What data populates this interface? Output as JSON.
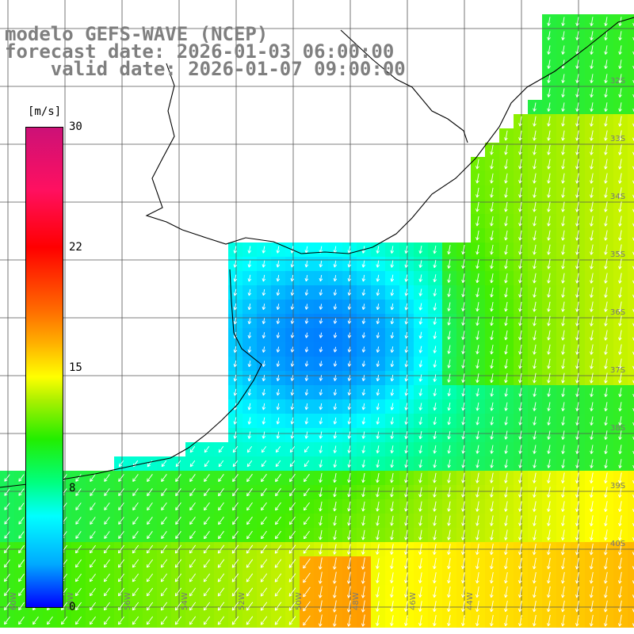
{
  "title": {
    "model": "modelo GEFS-WAVE (NCEP)",
    "forecast": "forecast date: 2026-01-03 06:00:00",
    "valid": "    valid date: 2026-01-07 09:00:00"
  },
  "colorbar": {
    "unit": "[m/s]",
    "min": 0,
    "max": 30,
    "ticks": [
      {
        "value": 30,
        "label": "30"
      },
      {
        "value": 22,
        "label": "22"
      },
      {
        "value": 15,
        "label": "15"
      },
      {
        "value": 8,
        "label": "8"
      },
      {
        "value": 0,
        "label": "0"
      }
    ]
  },
  "map": {
    "longitude_labels": [
      "60W",
      "58W",
      "56W",
      "54W",
      "52W",
      "50W",
      "48W",
      "46W",
      "44W"
    ],
    "latitude_labels": [
      "32S",
      "33S",
      "34S",
      "35S",
      "36S",
      "37S",
      "38S",
      "39S",
      "40S"
    ]
  }
}
